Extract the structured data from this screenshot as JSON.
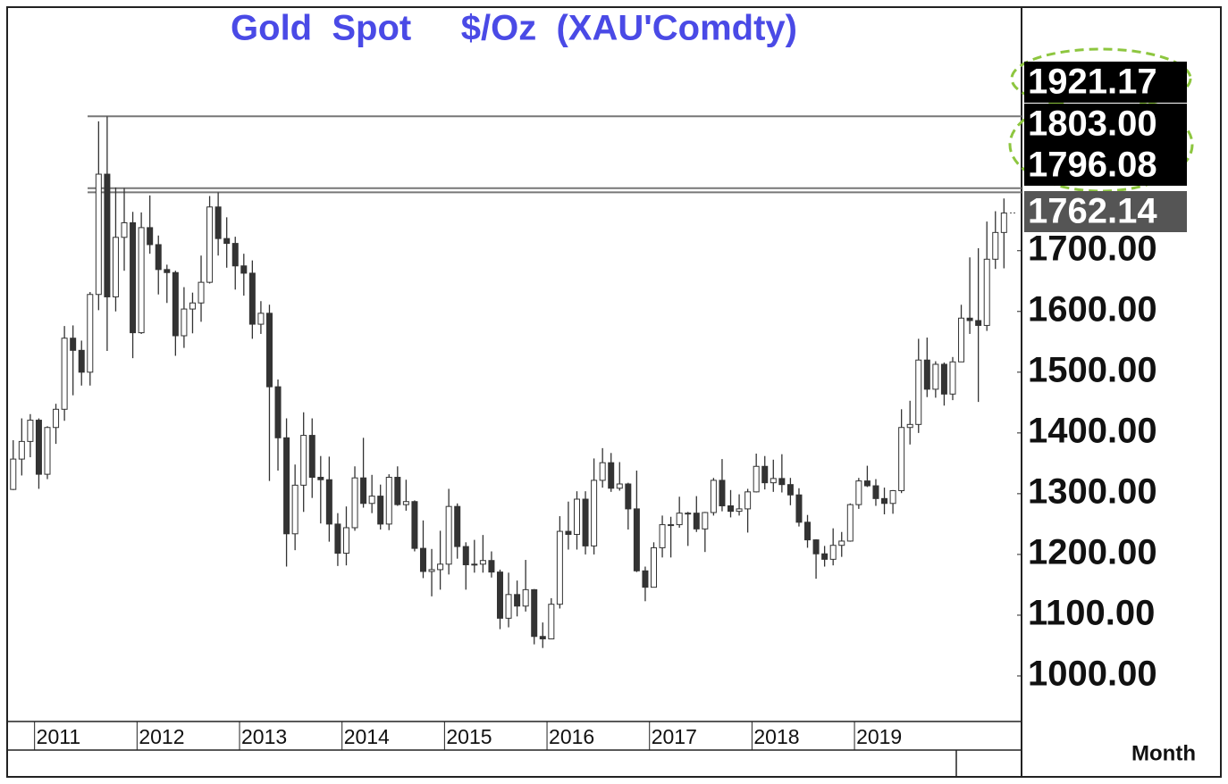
{
  "chart_data": {
    "type": "candlestick",
    "title": "Gold  Spot     $/Oz  (XAU'Comdty)",
    "period_label": "Month",
    "xlim": [
      2010.75,
      2020.63
    ],
    "xticks": [
      2011,
      2012,
      2013,
      2014,
      2015,
      2016,
      2017,
      2018,
      2019
    ],
    "ylim": [
      925,
      2098
    ],
    "yticks": [
      {
        "value": 1000,
        "label": "1000.00"
      },
      {
        "value": 1100,
        "label": "1100.00"
      },
      {
        "value": 1200,
        "label": "1200.00"
      },
      {
        "value": 1300,
        "label": "1300.00"
      },
      {
        "value": 1400,
        "label": "1400.00"
      },
      {
        "value": 1500,
        "label": "1500.00"
      },
      {
        "value": 1600,
        "label": "1600.00"
      },
      {
        "value": 1700,
        "label": "1700.00"
      }
    ],
    "price_levels": [
      1921.17,
      {
        "value": 1803,
        "label": "1803.00"
      },
      1796.08
    ],
    "last_price": 1762.14,
    "up_color": "#ffffff",
    "down_color": "#333333",
    "open": [
      1307,
      1357,
      1386,
      1421,
      1332,
      1409,
      1439,
      1556,
      1536,
      1500,
      1628,
      1826,
      1624,
      1722,
      1746,
      1565,
      1738,
      1710,
      1669,
      1664,
      1560,
      1604,
      1614,
      1648,
      1772,
      1720,
      1712,
      1675,
      1663,
      1579,
      1597,
      1476,
      1392,
      1234,
      1314,
      1396,
      1327,
      1323,
      1250,
      1202,
      1244,
      1326,
      1284,
      1296,
      1250,
      1327,
      1282,
      1287,
      1210,
      1172,
      1175,
      1184,
      1279,
      1213,
      1183,
      1184,
      1190,
      1171,
      1095,
      1134,
      1115,
      1142,
      1065,
      1061,
      1118,
      1238,
      1233,
      1291,
      1214,
      1322,
      1351,
      1309,
      1316,
      1275,
      1173,
      1146,
      1211,
      1249,
      1249,
      1268,
      1268,
      1242,
      1269,
      1322,
      1280,
      1271,
      1275,
      1303,
      1345,
      1318,
      1325,
      1315,
      1298,
      1253,
      1224,
      1201,
      1192,
      1215,
      1222,
      1282,
      1321,
      1313,
      1292,
      1284,
      1305,
      1409,
      1414,
      1520,
      1472,
      1513,
      1464,
      1517,
      1589,
      1585,
      1577,
      1686,
      1730
    ],
    "high": [
      1388,
      1424,
      1431,
      1424,
      1411,
      1448,
      1576,
      1577,
      1552,
      1632,
      1913,
      1921,
      1804,
      1803,
      1764,
      1763,
      1791,
      1725,
      1677,
      1667,
      1640,
      1631,
      1692,
      1790,
      1796,
      1755,
      1723,
      1695,
      1684,
      1617,
      1611,
      1488,
      1424,
      1348,
      1434,
      1424,
      1362,
      1361,
      1268,
      1279,
      1345,
      1392,
      1331,
      1315,
      1332,
      1345,
      1323,
      1289,
      1256,
      1209,
      1239,
      1308,
      1284,
      1220,
      1224,
      1232,
      1205,
      1175,
      1170,
      1157,
      1191,
      1143,
      1088,
      1128,
      1263,
      1287,
      1304,
      1304,
      1358,
      1375,
      1367,
      1352,
      1318,
      1338,
      1180,
      1220,
      1264,
      1262,
      1295,
      1270,
      1296,
      1270,
      1326,
      1357,
      1306,
      1299,
      1308,
      1366,
      1362,
      1356,
      1365,
      1326,
      1309,
      1265,
      1225,
      1214,
      1243,
      1237,
      1284,
      1326,
      1346,
      1324,
      1310,
      1306,
      1439,
      1453,
      1555,
      1557,
      1518,
      1516,
      1525,
      1611,
      1689,
      1704,
      1748,
      1765,
      1786
    ],
    "low": [
      1306,
      1330,
      1360,
      1308,
      1324,
      1382,
      1420,
      1462,
      1478,
      1478,
      1602,
      1535,
      1600,
      1667,
      1523,
      1563,
      1695,
      1628,
      1614,
      1527,
      1540,
      1564,
      1583,
      1646,
      1692,
      1672,
      1636,
      1626,
      1555,
      1563,
      1321,
      1338,
      1180,
      1207,
      1270,
      1293,
      1251,
      1221,
      1181,
      1182,
      1239,
      1277,
      1268,
      1241,
      1240,
      1280,
      1272,
      1205,
      1161,
      1131,
      1142,
      1167,
      1193,
      1142,
      1170,
      1170,
      1162,
      1077,
      1080,
      1098,
      1106,
      1052,
      1046,
      1062,
      1111,
      1208,
      1208,
      1200,
      1200,
      1310,
      1303,
      1305,
      1241,
      1171,
      1123,
      1146,
      1195,
      1195,
      1244,
      1214,
      1237,
      1204,
      1264,
      1271,
      1261,
      1264,
      1236,
      1302,
      1307,
      1303,
      1302,
      1281,
      1246,
      1211,
      1160,
      1180,
      1182,
      1196,
      1221,
      1275,
      1311,
      1280,
      1266,
      1267,
      1301,
      1381,
      1400,
      1459,
      1458,
      1445,
      1454,
      1517,
      1563,
      1451,
      1568,
      1670,
      1671
    ],
    "close": [
      1357,
      1386,
      1421,
      1332,
      1409,
      1439,
      1556,
      1536,
      1500,
      1628,
      1826,
      1624,
      1722,
      1746,
      1565,
      1738,
      1710,
      1669,
      1664,
      1560,
      1604,
      1614,
      1648,
      1772,
      1720,
      1712,
      1675,
      1663,
      1579,
      1597,
      1476,
      1392,
      1234,
      1314,
      1396,
      1327,
      1323,
      1250,
      1202,
      1244,
      1326,
      1284,
      1296,
      1250,
      1327,
      1282,
      1287,
      1210,
      1172,
      1175,
      1184,
      1279,
      1213,
      1183,
      1184,
      1190,
      1171,
      1095,
      1134,
      1115,
      1142,
      1065,
      1061,
      1118,
      1238,
      1233,
      1291,
      1214,
      1322,
      1351,
      1309,
      1316,
      1275,
      1173,
      1146,
      1211,
      1249,
      1249,
      1268,
      1268,
      1242,
      1269,
      1322,
      1280,
      1271,
      1275,
      1303,
      1345,
      1318,
      1325,
      1315,
      1298,
      1253,
      1224,
      1201,
      1192,
      1215,
      1222,
      1282,
      1321,
      1313,
      1292,
      1284,
      1305,
      1409,
      1414,
      1520,
      1472,
      1513,
      1464,
      1517,
      1589,
      1585,
      1577,
      1686,
      1730,
      1762
    ]
  }
}
